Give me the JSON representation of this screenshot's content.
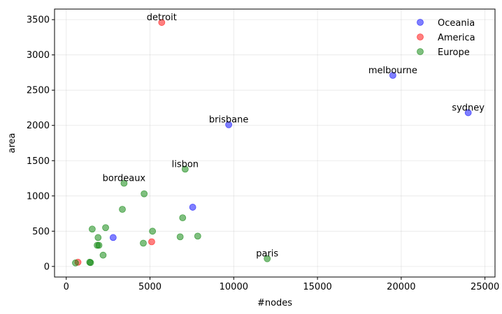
{
  "chart_data": {
    "type": "scatter",
    "xlabel": "#nodes",
    "ylabel": "area",
    "xlim": [
      -700,
      25600
    ],
    "ylim": [
      -150,
      3650
    ],
    "xticks": [
      0,
      5000,
      10000,
      15000,
      20000,
      25000
    ],
    "yticks": [
      0,
      500,
      1000,
      1500,
      2000,
      2500,
      3000,
      3500
    ],
    "grid": true,
    "legend_position": "top-right",
    "series": [
      {
        "name": "Oceania",
        "color": "#0000ff",
        "points": [
          {
            "x": 24000,
            "y": 2180,
            "label": "sydney"
          },
          {
            "x": 19500,
            "y": 2710,
            "label": "melbourne"
          },
          {
            "x": 9700,
            "y": 2010,
            "label": "brisbane"
          },
          {
            "x": 7550,
            "y": 840
          },
          {
            "x": 2800,
            "y": 410
          }
        ]
      },
      {
        "name": "America",
        "color": "#ff0000",
        "points": [
          {
            "x": 5700,
            "y": 3460,
            "label": "detroit"
          },
          {
            "x": 5100,
            "y": 350
          },
          {
            "x": 700,
            "y": 60
          }
        ]
      },
      {
        "name": "Europe",
        "color": "#008000",
        "points": [
          {
            "x": 12000,
            "y": 110,
            "label": "paris"
          },
          {
            "x": 7100,
            "y": 1380,
            "label": "lisbon"
          },
          {
            "x": 3450,
            "y": 1180,
            "label": "bordeaux"
          },
          {
            "x": 4650,
            "y": 1030
          },
          {
            "x": 3350,
            "y": 810
          },
          {
            "x": 2350,
            "y": 550
          },
          {
            "x": 1550,
            "y": 530
          },
          {
            "x": 5150,
            "y": 500
          },
          {
            "x": 7850,
            "y": 430
          },
          {
            "x": 6800,
            "y": 420
          },
          {
            "x": 6950,
            "y": 690
          },
          {
            "x": 1900,
            "y": 410
          },
          {
            "x": 4600,
            "y": 330
          },
          {
            "x": 1850,
            "y": 300
          },
          {
            "x": 1950,
            "y": 300
          },
          {
            "x": 2200,
            "y": 160
          },
          {
            "x": 1400,
            "y": 60
          },
          {
            "x": 1450,
            "y": 55
          },
          {
            "x": 550,
            "y": 50
          }
        ]
      }
    ]
  }
}
